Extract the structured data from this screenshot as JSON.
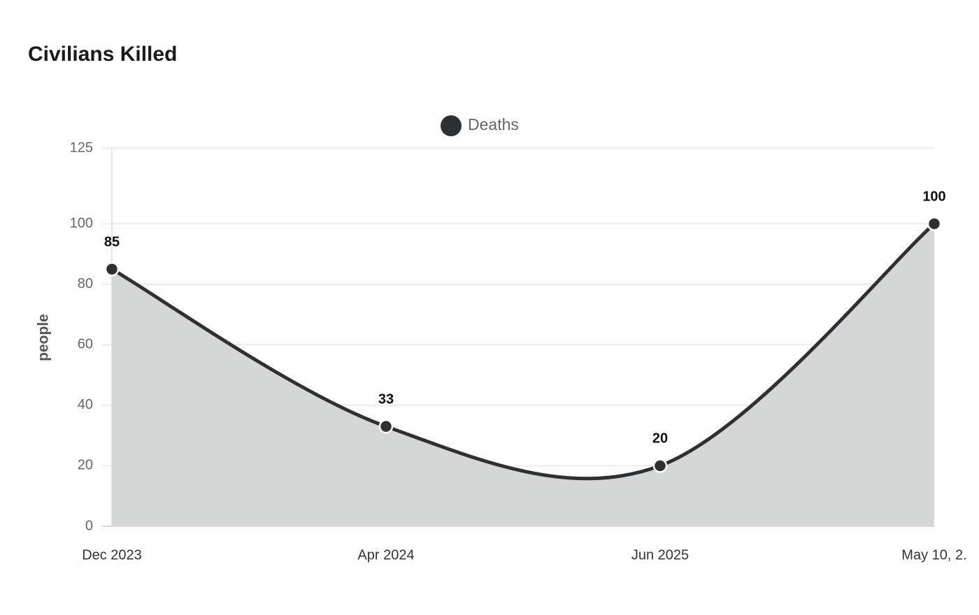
{
  "chart_data": {
    "type": "area",
    "title": "Civilians Killed",
    "categories": [
      "Dec 2023",
      "Apr 2024",
      "Jun 2025",
      "May 10, 2."
    ],
    "series": [
      {
        "name": "Deaths",
        "color": "#2e3133",
        "fill": "#d5d6d6",
        "values": [
          85,
          33,
          20,
          100
        ]
      }
    ],
    "y_label": "people",
    "ylim": [
      0,
      125
    ],
    "yticks": [
      0,
      20,
      40,
      60,
      80,
      100,
      125
    ],
    "grid": true,
    "legend": "top"
  }
}
